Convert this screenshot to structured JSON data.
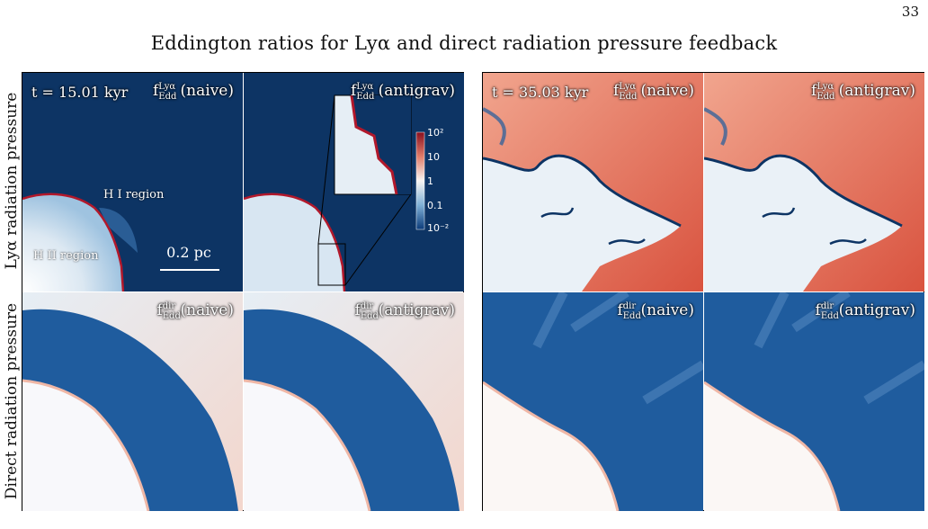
{
  "page_number": "33",
  "title": "Eddington ratios for Lyα and direct radiation pressure feedback",
  "row_labels": {
    "top": "Lyα radiation pressure",
    "bottom": "Direct radiation pressure"
  },
  "panels": {
    "sym_f": "f",
    "sub": "Edd",
    "sup_lya": "Lyα",
    "sup_dir": "dir",
    "naive": "(naive)",
    "antigrav": "(antigrav)"
  },
  "times": {
    "left": "t = 15.01 kyr",
    "right": "t = 35.03 kyr"
  },
  "annotations": {
    "h1": "H I region",
    "h2": "H II region",
    "scale": "0.2 pc"
  },
  "colorbar": {
    "ticks": [
      "10²",
      "10",
      "1",
      "0.1",
      "10⁻²"
    ],
    "colors": {
      "low": "#0b3b7a",
      "mid": "#f7f4f2",
      "high": "#8a0f1f"
    }
  }
}
